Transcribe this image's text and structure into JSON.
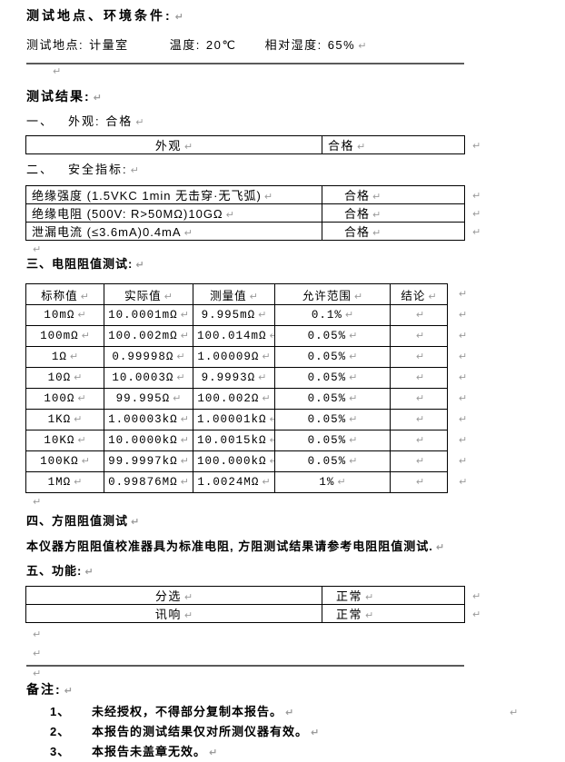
{
  "marks": {
    "pilcrow": "↵"
  },
  "colors": {
    "text": "#000000",
    "table_border": "#000000",
    "rule": "#5a5a5a",
    "mark_gray": "#9a9a9a",
    "background": "#ffffff"
  },
  "env": {
    "title": "测试地点、环境条件:",
    "location_label": "测试地点:",
    "location_value": "计量室",
    "temp_label": "温度:",
    "temp_value": "20℃",
    "humidity_label": "相对湿度:",
    "humidity_value": "65%"
  },
  "results": {
    "title": "测试结果:"
  },
  "sections": {
    "appearance": {
      "num": "一、",
      "heading": "外观: 合格",
      "rows": [
        [
          "外观",
          "合格"
        ]
      ]
    },
    "safety": {
      "num": "二、",
      "heading": "安全指标:",
      "rows": [
        [
          "绝缘强度 (1.5VKC 1min 无击穿·无飞弧)",
          "合格"
        ],
        [
          "绝缘电阻 (500V: R>50MΩ)10GΩ",
          "合格"
        ],
        [
          "泄漏电流 (≤3.6mA)0.4mA",
          "合格"
        ]
      ]
    },
    "resistance": {
      "num": "三、",
      "heading": "电阻阻值测试:",
      "headers": [
        "标称值",
        "实际值",
        "测量值",
        "允许范围",
        "结论"
      ],
      "rows": [
        [
          "10mΩ",
          "10.0001mΩ",
          "9.995mΩ",
          "0.1%",
          ""
        ],
        [
          "100mΩ",
          "100.002mΩ",
          "100.014mΩ",
          "0.05%",
          ""
        ],
        [
          "1Ω",
          "0.99998Ω",
          "1.00009Ω",
          "0.05%",
          ""
        ],
        [
          "10Ω",
          "10.0003Ω",
          "9.9993Ω",
          "0.05%",
          ""
        ],
        [
          "100Ω",
          "99.995Ω",
          "100.002Ω",
          "0.05%",
          ""
        ],
        [
          "1KΩ",
          "1.00003kΩ",
          "1.00001kΩ",
          "0.05%",
          ""
        ],
        [
          "10KΩ",
          "10.0000kΩ",
          "10.0015kΩ",
          "0.05%",
          ""
        ],
        [
          "100KΩ",
          "99.9997kΩ",
          "100.000kΩ",
          "0.05%",
          ""
        ],
        [
          "1MΩ",
          "0.99876MΩ",
          "1.0024MΩ",
          "1%",
          ""
        ]
      ]
    },
    "sheet": {
      "num": "四、",
      "heading": "方阻阻值测试",
      "note": "本仪器方阻阻值校准器具为标准电阻, 方阻测试结果请参考电阻阻值测试."
    },
    "functions": {
      "num": "五、",
      "heading": "功能:",
      "rows": [
        [
          "分选",
          "正常"
        ],
        [
          "讯响",
          "正常"
        ]
      ]
    }
  },
  "remarks": {
    "title": "备注:",
    "items": [
      {
        "num": "1、",
        "text": "未经授权，不得部分复制本报告。"
      },
      {
        "num": "2、",
        "text": "本报告的测试结果仅对所测仪器有效。"
      },
      {
        "num": "3、",
        "text": "本报告未盖章无效。"
      }
    ]
  }
}
